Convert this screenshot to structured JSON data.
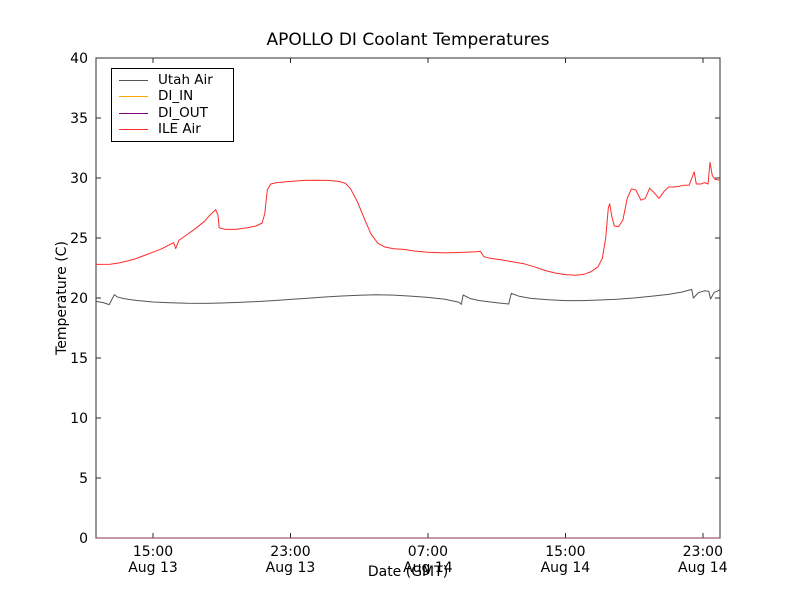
{
  "chart_data": {
    "type": "line",
    "title": "APOLLO DI Coolant Temperatures",
    "xlabel": "Date (GMT)",
    "ylabel": "Temperature (C)",
    "x_encoding": "hours since Aug 13 00:00 (GMT)",
    "xlim": [
      11.68,
      48.0
    ],
    "ylim": [
      0,
      40
    ],
    "grid": false,
    "legend_position": "upper left",
    "background": "#ffffff",
    "frame_color": "#2e2e2e",
    "y_ticks": [
      0,
      5,
      10,
      15,
      20,
      25,
      30,
      35,
      40
    ],
    "x_ticks": [
      {
        "value": 15,
        "time": "15:00",
        "date": "Aug 13"
      },
      {
        "value": 23,
        "time": "23:00",
        "date": "Aug 13"
      },
      {
        "value": 31,
        "time": "07:00",
        "date": "Aug 14"
      },
      {
        "value": 39,
        "time": "15:00",
        "date": "Aug 14"
      },
      {
        "value": 47,
        "time": "23:00",
        "date": "Aug 14"
      }
    ],
    "series": [
      {
        "name": "Utah Air",
        "color": "#555555",
        "points": [
          [
            11.68,
            19.72
          ],
          [
            12.1,
            19.62
          ],
          [
            12.45,
            19.45
          ],
          [
            12.75,
            20.28
          ],
          [
            12.9,
            20.1
          ],
          [
            13.3,
            19.95
          ],
          [
            14,
            19.8
          ],
          [
            15,
            19.67
          ],
          [
            16,
            19.6
          ],
          [
            17,
            19.56
          ],
          [
            18,
            19.55
          ],
          [
            19,
            19.58
          ],
          [
            20,
            19.63
          ],
          [
            21,
            19.7
          ],
          [
            22,
            19.78
          ],
          [
            23,
            19.88
          ],
          [
            24,
            19.98
          ],
          [
            25,
            20.08
          ],
          [
            26,
            20.17
          ],
          [
            27,
            20.23
          ],
          [
            28,
            20.27
          ],
          [
            29,
            20.24
          ],
          [
            30,
            20.16
          ],
          [
            31,
            20.05
          ],
          [
            32,
            19.9
          ],
          [
            32.8,
            19.65
          ],
          [
            32.95,
            19.47
          ],
          [
            33.05,
            20.25
          ],
          [
            33.5,
            19.93
          ],
          [
            34,
            19.78
          ],
          [
            35,
            19.6
          ],
          [
            35.7,
            19.5
          ],
          [
            35.85,
            20.38
          ],
          [
            36.3,
            20.15
          ],
          [
            37,
            19.97
          ],
          [
            38,
            19.85
          ],
          [
            39,
            19.78
          ],
          [
            40,
            19.78
          ],
          [
            41,
            19.83
          ],
          [
            42,
            19.9
          ],
          [
            43,
            20.0
          ],
          [
            44,
            20.14
          ],
          [
            45,
            20.3
          ],
          [
            45.8,
            20.5
          ],
          [
            46.35,
            20.72
          ],
          [
            46.45,
            20.0
          ],
          [
            46.75,
            20.45
          ],
          [
            47.1,
            20.6
          ],
          [
            47.35,
            20.55
          ],
          [
            47.45,
            19.92
          ],
          [
            47.65,
            20.45
          ],
          [
            48,
            20.68
          ]
        ]
      },
      {
        "name": "DI_IN",
        "color": "#ffa500",
        "plot_opacity": 0.55,
        "points": [
          [
            11.68,
            0
          ],
          [
            48,
            0
          ]
        ]
      },
      {
        "name": "DI_OUT",
        "color": "#800080",
        "plot_opacity": 0.55,
        "points": [
          [
            11.68,
            0
          ],
          [
            48,
            0
          ]
        ]
      },
      {
        "name": "ILE Air",
        "color": "#ff2a2a",
        "points": [
          [
            11.68,
            22.8
          ],
          [
            12.5,
            22.82
          ],
          [
            13,
            22.92
          ],
          [
            13.5,
            23.08
          ],
          [
            14,
            23.28
          ],
          [
            14.5,
            23.55
          ],
          [
            15,
            23.82
          ],
          [
            15.5,
            24.1
          ],
          [
            16.2,
            24.62
          ],
          [
            16.32,
            24.12
          ],
          [
            16.5,
            24.8
          ],
          [
            17,
            25.3
          ],
          [
            17.5,
            25.82
          ],
          [
            18,
            26.4
          ],
          [
            18.3,
            26.9
          ],
          [
            18.65,
            27.35
          ],
          [
            18.78,
            26.9
          ],
          [
            18.85,
            25.85
          ],
          [
            19.2,
            25.72
          ],
          [
            19.8,
            25.72
          ],
          [
            20.5,
            25.85
          ],
          [
            21,
            26.0
          ],
          [
            21.35,
            26.25
          ],
          [
            21.5,
            27.0
          ],
          [
            21.65,
            29.0
          ],
          [
            21.85,
            29.5
          ],
          [
            22.2,
            29.62
          ],
          [
            23,
            29.72
          ],
          [
            23.8,
            29.8
          ],
          [
            24.5,
            29.82
          ],
          [
            25.2,
            29.8
          ],
          [
            25.8,
            29.72
          ],
          [
            26.2,
            29.55
          ],
          [
            26.5,
            29.1
          ],
          [
            26.9,
            28.0
          ],
          [
            27.3,
            26.6
          ],
          [
            27.7,
            25.3
          ],
          [
            28.1,
            24.55
          ],
          [
            28.5,
            24.25
          ],
          [
            29,
            24.1
          ],
          [
            29.6,
            24.05
          ],
          [
            30.2,
            23.92
          ],
          [
            31,
            23.82
          ],
          [
            32,
            23.76
          ],
          [
            33,
            23.8
          ],
          [
            33.8,
            23.85
          ],
          [
            34.05,
            23.9
          ],
          [
            34.25,
            23.45
          ],
          [
            34.6,
            23.32
          ],
          [
            35.2,
            23.2
          ],
          [
            36,
            23.0
          ],
          [
            36.6,
            22.85
          ],
          [
            37.2,
            22.6
          ],
          [
            37.8,
            22.3
          ],
          [
            38.4,
            22.08
          ],
          [
            39,
            21.95
          ],
          [
            39.6,
            21.9
          ],
          [
            40.1,
            21.98
          ],
          [
            40.5,
            22.2
          ],
          [
            40.9,
            22.6
          ],
          [
            41.15,
            23.3
          ],
          [
            41.35,
            25.0
          ],
          [
            41.5,
            27.5
          ],
          [
            41.58,
            27.85
          ],
          [
            41.7,
            26.8
          ],
          [
            41.85,
            26.0
          ],
          [
            42.1,
            25.95
          ],
          [
            42.35,
            26.5
          ],
          [
            42.6,
            28.3
          ],
          [
            42.85,
            29.1
          ],
          [
            43.1,
            29.0
          ],
          [
            43.4,
            28.15
          ],
          [
            43.65,
            28.3
          ],
          [
            43.9,
            29.15
          ],
          [
            44.15,
            28.8
          ],
          [
            44.45,
            28.3
          ],
          [
            44.75,
            28.9
          ],
          [
            45,
            29.25
          ],
          [
            45.3,
            29.25
          ],
          [
            45.6,
            29.3
          ],
          [
            45.9,
            29.4
          ],
          [
            46.2,
            29.4
          ],
          [
            46.5,
            30.5
          ],
          [
            46.62,
            29.5
          ],
          [
            46.9,
            29.5
          ],
          [
            47.1,
            29.62
          ],
          [
            47.3,
            29.5
          ],
          [
            47.42,
            31.3
          ],
          [
            47.55,
            30.2
          ],
          [
            47.7,
            29.9
          ],
          [
            48,
            29.82
          ]
        ]
      }
    ]
  }
}
